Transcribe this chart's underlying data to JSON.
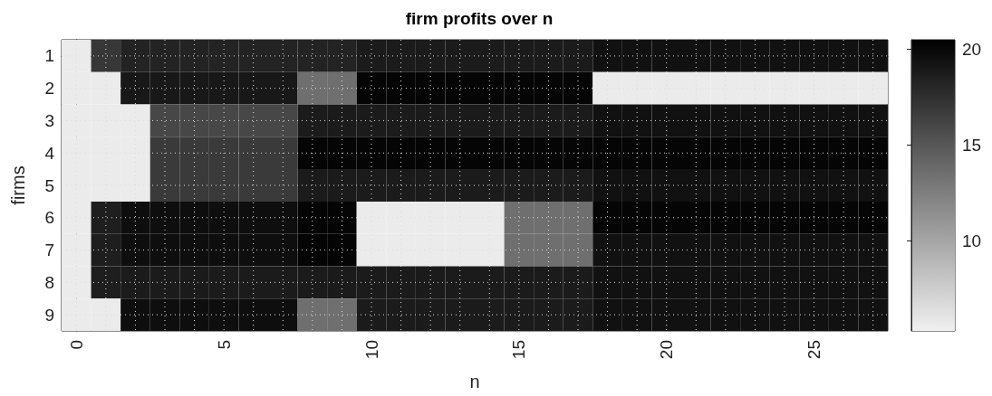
{
  "chart_data": {
    "type": "heatmap",
    "title": "firm profits over n",
    "xlabel": "n",
    "ylabel": "firms",
    "x": [
      0,
      1,
      2,
      3,
      4,
      5,
      6,
      7,
      8,
      9,
      10,
      11,
      12,
      13,
      14,
      15,
      16,
      17,
      18,
      19,
      20,
      21,
      22,
      23,
      24,
      25,
      26,
      27
    ],
    "y_categories": [
      "1",
      "2",
      "3",
      "4",
      "5",
      "6",
      "7",
      "8",
      "9"
    ],
    "xlim": [
      -0.5,
      27.5
    ],
    "xticks": [
      0,
      5,
      10,
      15,
      20,
      25
    ],
    "clim": [
      5.3,
      20.5
    ],
    "cticks": [
      10,
      15,
      20
    ],
    "grid": true,
    "cells": [
      [
        5.6,
        17,
        18.3,
        18.3,
        18.3,
        18.3,
        18.3,
        18.3,
        18.3,
        18.3,
        18.8,
        18.8,
        18.8,
        18.8,
        18.8,
        18.8,
        18.8,
        18.8,
        19.4,
        19.4,
        19.4,
        19.4,
        19.4,
        19.4,
        19.4,
        19.4,
        19.4,
        19.4
      ],
      [
        5.6,
        5.6,
        19,
        19,
        19,
        19,
        19,
        19,
        13.5,
        13.5,
        20.2,
        20.2,
        20.2,
        20.2,
        20.2,
        20.2,
        20.2,
        20.2,
        5.6,
        5.6,
        5.6,
        5.6,
        5.6,
        5.6,
        5.6,
        5.6,
        5.6,
        5.6
      ],
      [
        5.6,
        5.6,
        5.6,
        16,
        16,
        16,
        16,
        16,
        18.8,
        18.8,
        18.8,
        18.8,
        18.8,
        18.8,
        18.8,
        18.8,
        18.8,
        18.8,
        19.4,
        19.4,
        19.4,
        19.4,
        19.4,
        19.4,
        19.4,
        19.4,
        19.4,
        19.4
      ],
      [
        5.6,
        5.6,
        5.6,
        16.8,
        16.8,
        16.8,
        16.8,
        16.8,
        20.2,
        20.2,
        20.2,
        20.2,
        20.2,
        20.2,
        20.2,
        20.2,
        20.2,
        20.2,
        20.2,
        20.2,
        20.2,
        20.2,
        20.2,
        20.2,
        20.2,
        20.2,
        20.2,
        20.2
      ],
      [
        5.6,
        5.6,
        5.6,
        16.8,
        16.8,
        16.8,
        16.8,
        16.8,
        18.8,
        18.8,
        18.8,
        18.8,
        18.8,
        18.8,
        18.8,
        18.8,
        18.8,
        18.8,
        19.4,
        19.4,
        19.4,
        19.4,
        19.4,
        19.4,
        19.4,
        19.4,
        19.4,
        19.4
      ],
      [
        5.6,
        18.6,
        19.6,
        19.6,
        19.6,
        19.6,
        19.6,
        19.6,
        20.2,
        20.2,
        5.6,
        5.6,
        5.6,
        5.6,
        5.6,
        13.5,
        13.5,
        13.5,
        20.2,
        20.2,
        20.2,
        20.2,
        20.2,
        20.2,
        20.2,
        20.2,
        20.2,
        20.2
      ],
      [
        5.6,
        18.6,
        19.6,
        19.6,
        19.6,
        19.6,
        19.6,
        19.6,
        20.2,
        20.2,
        5.6,
        5.6,
        5.6,
        5.6,
        5.6,
        13.5,
        13.5,
        13.5,
        19.4,
        19.4,
        19.4,
        19.4,
        19.4,
        19.4,
        19.4,
        19.4,
        19.4,
        19.4
      ],
      [
        5.6,
        18.6,
        18.8,
        18.8,
        18.8,
        18.8,
        18.8,
        18.8,
        18.8,
        18.8,
        18.8,
        18.8,
        18.8,
        18.8,
        18.8,
        18.8,
        18.8,
        18.8,
        19.4,
        19.4,
        19.4,
        19.4,
        19.4,
        19.4,
        19.4,
        19.4,
        19.4,
        19.4
      ],
      [
        5.6,
        5.6,
        19.6,
        19.6,
        19.6,
        19.6,
        19.6,
        19.6,
        13.5,
        13.5,
        18.8,
        18.8,
        18.8,
        18.8,
        18.8,
        18.8,
        18.8,
        18.8,
        19.4,
        19.4,
        19.4,
        19.4,
        19.4,
        19.4,
        19.4,
        19.4,
        19.4,
        19.4
      ]
    ]
  }
}
